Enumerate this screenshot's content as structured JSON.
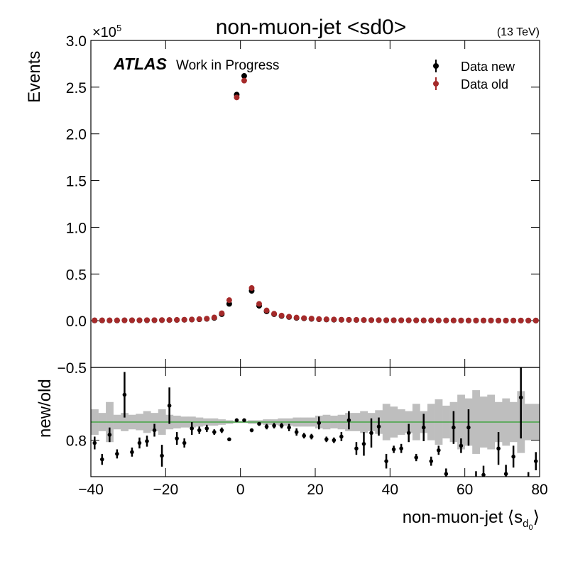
{
  "chart_data": [
    {
      "type": "scatter",
      "title": "non-muon-jet <sd0>",
      "energy": "(13 TeV)",
      "experiment": "ATLAS",
      "status": "Work in Progress",
      "ylabel": "Events",
      "multiplier": "×10",
      "multiplier_exp": "5",
      "x": [
        -39,
        -37,
        -35,
        -33,
        -31,
        -29,
        -27,
        -25,
        -23,
        -21,
        -19,
        -17,
        -15,
        -13,
        -11,
        -9,
        -7,
        -5,
        -3,
        -1,
        1,
        3,
        5,
        7,
        9,
        11,
        13,
        15,
        17,
        19,
        21,
        23,
        25,
        27,
        29,
        31,
        33,
        35,
        37,
        39,
        41,
        43,
        45,
        47,
        49,
        51,
        53,
        55,
        57,
        59,
        61,
        63,
        65,
        67,
        69,
        71,
        73,
        75,
        77,
        79
      ],
      "series": [
        {
          "name": "Data new",
          "color": "#000000",
          "values": [
            0.003,
            0.003,
            0.003,
            0.003,
            0.004,
            0.004,
            0.004,
            0.005,
            0.005,
            0.006,
            0.007,
            0.008,
            0.01,
            0.012,
            0.015,
            0.02,
            0.03,
            0.07,
            0.18,
            2.42,
            2.62,
            0.32,
            0.16,
            0.1,
            0.07,
            0.05,
            0.04,
            0.03,
            0.025,
            0.02,
            0.016,
            0.013,
            0.011,
            0.01,
            0.009,
            0.008,
            0.007,
            0.006,
            0.006,
            0.005,
            0.005,
            0.004,
            0.004,
            0.004,
            0.003,
            0.003,
            0.003,
            0.003,
            0.003,
            0.002,
            0.002,
            0.002,
            0.002,
            0.002,
            0.002,
            0.002,
            0.002,
            0.002,
            0.002,
            0.002
          ]
        },
        {
          "name": "Data old",
          "color": "#a52a2a",
          "values": [
            0.004,
            0.004,
            0.004,
            0.004,
            0.004,
            0.005,
            0.005,
            0.006,
            0.006,
            0.007,
            0.008,
            0.009,
            0.011,
            0.013,
            0.017,
            0.022,
            0.035,
            0.08,
            0.22,
            2.39,
            2.57,
            0.35,
            0.18,
            0.11,
            0.075,
            0.055,
            0.043,
            0.034,
            0.028,
            0.023,
            0.018,
            0.015,
            0.013,
            0.011,
            0.01,
            0.009,
            0.008,
            0.007,
            0.006,
            0.006,
            0.005,
            0.005,
            0.005,
            0.004,
            0.004,
            0.004,
            0.004,
            0.003,
            0.003,
            0.003,
            0.003,
            0.003,
            0.003,
            0.003,
            0.002,
            0.002,
            0.002,
            0.002,
            0.002,
            0.002
          ]
        }
      ],
      "xlim": [
        -40,
        80
      ],
      "ylim": [
        -0.5,
        3.0
      ],
      "yticks": [
        {
          "value": -0.5,
          "label": "−0.5"
        },
        {
          "value": 0,
          "label": "0.0"
        },
        0.5,
        {
          "value": 1,
          "label": "1.0"
        },
        1.5,
        {
          "value": 2,
          "label": "2.0"
        },
        2.5,
        {
          "value": 3,
          "label": "3.0"
        }
      ],
      "legend": "upper right"
    },
    {
      "type": "ratio",
      "ylabel": "new/old",
      "xlabel": [
        "non-muon-jet ⟨s",
        "d",
        "0",
        "⟩"
      ],
      "color": "#000000",
      "band_color": "#bebebe",
      "reference_color": "#2ca02c",
      "reference": 1,
      "values": [
        0.77,
        0.59,
        0.86,
        0.65,
        1.3,
        0.67,
        0.77,
        0.79,
        0.91,
        0.63,
        1.18,
        0.82,
        0.77,
        0.93,
        0.91,
        0.93,
        0.89,
        0.91,
        0.81,
        1.02,
        1.02,
        0.91,
        0.98,
        0.95,
        0.96,
        0.96,
        0.94,
        0.89,
        0.85,
        0.84,
        0.99,
        0.81,
        0.8,
        0.84,
        1.02,
        0.71,
        0.76,
        0.88,
        0.95,
        0.57,
        0.7,
        0.71,
        0.88,
        0.61,
        0.94,
        0.57,
        0.69,
        0.43,
        0.94,
        0.74,
        0.94,
        0.36,
        0.42,
        0.3,
        0.71,
        0.43,
        0.62,
        1.27,
        0.35,
        0.57
      ],
      "errors": [
        0.07,
        0.06,
        0.08,
        0.05,
        0.25,
        0.05,
        0.06,
        0.06,
        0.07,
        0.12,
        0.2,
        0.07,
        0.05,
        0.07,
        0.04,
        0.04,
        0.03,
        0.03,
        0.02,
        0.01,
        0.01,
        0.02,
        0.02,
        0.03,
        0.03,
        0.03,
        0.04,
        0.04,
        0.03,
        0.03,
        0.07,
        0.03,
        0.03,
        0.05,
        0.1,
        0.07,
        0.13,
        0.16,
        0.1,
        0.08,
        0.04,
        0.05,
        0.1,
        0.04,
        0.15,
        0.05,
        0.05,
        0.06,
        0.18,
        0.08,
        0.2,
        0.1,
        0.1,
        0.1,
        0.18,
        0.1,
        0.12,
        0.45,
        0.1,
        0.1
      ],
      "band": [
        0.14,
        0.1,
        0.22,
        0.08,
        0.1,
        0.08,
        0.09,
        0.12,
        0.1,
        0.14,
        0.08,
        0.07,
        0.06,
        0.06,
        0.05,
        0.04,
        0.04,
        0.03,
        0.02,
        0.01,
        0.01,
        0.02,
        0.02,
        0.03,
        0.03,
        0.04,
        0.04,
        0.05,
        0.05,
        0.05,
        0.07,
        0.08,
        0.07,
        0.08,
        0.1,
        0.1,
        0.12,
        0.1,
        0.13,
        0.2,
        0.17,
        0.14,
        0.12,
        0.2,
        0.12,
        0.2,
        0.25,
        0.18,
        0.22,
        0.3,
        0.26,
        0.35,
        0.28,
        0.3,
        0.22,
        0.26,
        0.22,
        0.34,
        0.2,
        0.2
      ],
      "xlim": [
        -40,
        80
      ],
      "ylim": [
        0.4,
        1.6
      ],
      "xticks": [
        {
          "value": -40,
          "label": "−40"
        },
        {
          "value": -20,
          "label": "−20"
        },
        0,
        20,
        40,
        60,
        80
      ],
      "yticks": [
        0.8
      ]
    }
  ]
}
